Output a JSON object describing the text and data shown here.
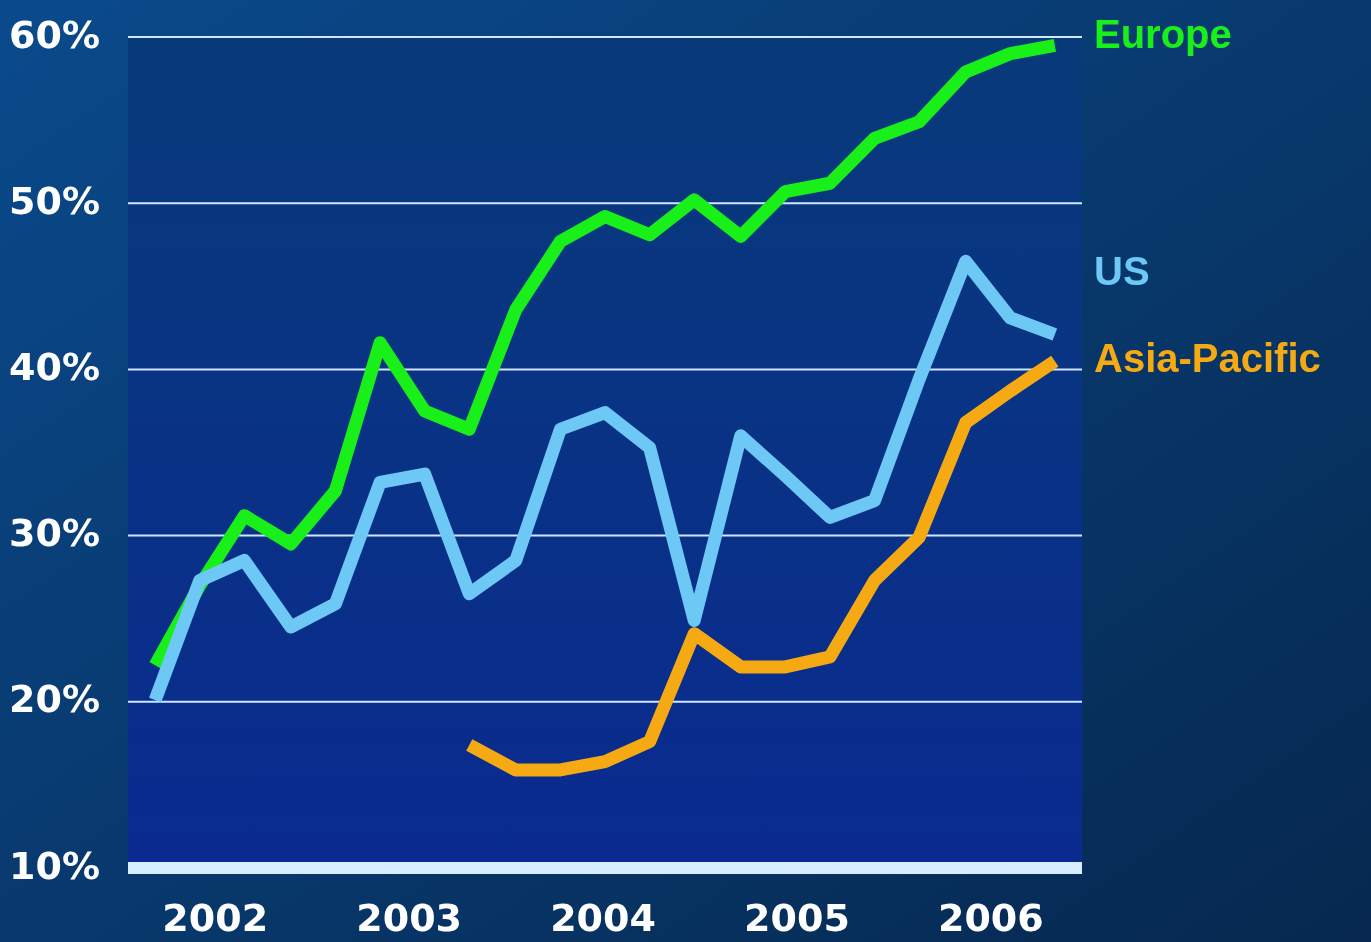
{
  "chart_data": {
    "type": "line",
    "x": [
      2001.69,
      2001.92,
      2002.15,
      2002.39,
      2002.62,
      2002.85,
      2003.08,
      2003.31,
      2003.55,
      2003.78,
      2004.01,
      2004.24,
      2004.47,
      2004.71,
      2004.94,
      2005.17,
      2005.4,
      2005.63,
      2005.87,
      2006.1,
      2006.33
    ],
    "series": [
      {
        "name": "Europe",
        "color": "#19f019",
        "values": [
          22.2,
          27.0,
          31.2,
          29.5,
          32.7,
          41.6,
          37.5,
          36.4,
          43.6,
          47.7,
          49.2,
          48.1,
          50.2,
          48.0,
          50.7,
          51.2,
          53.9,
          54.9,
          57.9,
          59.0,
          59.5
        ]
      },
      {
        "name": "US",
        "color": "#6ec8f5",
        "values": [
          20.1,
          27.3,
          28.5,
          24.5,
          25.9,
          33.2,
          33.7,
          26.5,
          28.5,
          36.4,
          37.4,
          35.3,
          24.9,
          36.0,
          33.6,
          31.1,
          32.1,
          39.4,
          46.5,
          43.1,
          42.1
        ]
      },
      {
        "name": "Asia-Pacific",
        "color": "#f5aa14",
        "values": [
          null,
          null,
          null,
          null,
          null,
          null,
          null,
          17.4,
          15.9,
          15.9,
          16.4,
          17.6,
          24.1,
          22.1,
          22.1,
          22.7,
          27.3,
          29.9,
          36.8,
          38.7,
          40.5
        ]
      }
    ],
    "xlim": [
      2001.55,
      2006.47
    ],
    "xticks": [
      2002,
      2003,
      2004,
      2005,
      2006
    ],
    "ylim": [
      10,
      60
    ],
    "yticks": [
      {
        "value": 10,
        "label": "10%"
      },
      {
        "value": 20,
        "label": "20%"
      },
      {
        "value": 30,
        "label": "30%"
      },
      {
        "value": 40,
        "label": "40%"
      },
      {
        "value": 50,
        "label": "50%"
      },
      {
        "value": 60,
        "label": "60%"
      }
    ],
    "grid": "y",
    "legend": false,
    "marker": "none",
    "line_style": "solid"
  }
}
